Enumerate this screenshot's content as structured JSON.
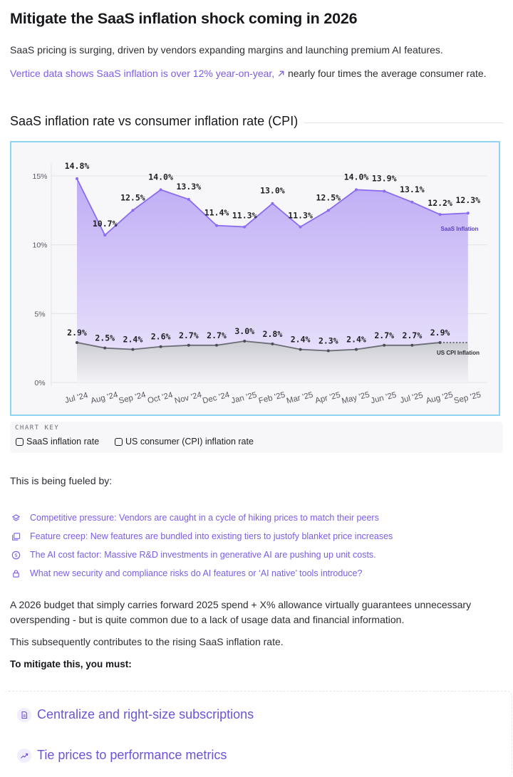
{
  "page": {
    "title": "Mitigate the SaaS inflation shock coming in 2026",
    "intro": "SaaS pricing is surging, driven by vendors expanding margins and launching premium AI features.",
    "intro_link": "Vertice data shows SaaS inflation is over 12% year-on-year,",
    "intro_link_icon": "arrow-up-right-icon",
    "intro_rest": " nearly four times the average consumer rate."
  },
  "chart_section": {
    "heading": "SaaS inflation rate vs consumer inflation rate (CPI)"
  },
  "chart_data": {
    "type": "area",
    "categories": [
      "Jul '24",
      "Aug '24",
      "Sep '24",
      "Oct '24",
      "Nov '24",
      "Dec '24",
      "Jan '25",
      "Feb '25",
      "Mar '25",
      "Apr '25",
      "May '25",
      "Jun '25",
      "Jul '25",
      "Aug '25",
      "Sep '25"
    ],
    "series": [
      {
        "name": "SaaS Inflation",
        "color": "#8b6cf0",
        "values": [
          14.8,
          10.7,
          12.5,
          14.0,
          13.3,
          11.4,
          11.3,
          13.0,
          11.3,
          12.5,
          14.0,
          13.9,
          13.1,
          12.2,
          12.3
        ],
        "labels": [
          "14.8%",
          "10.7%",
          "12.5%",
          "14.0%",
          "13.3%",
          "11.4%",
          "11.3%",
          "13.0%",
          "11.3%",
          "12.5%",
          "14.0%",
          "13.9%",
          "13.1%",
          "12.2%",
          "12.3%"
        ]
      },
      {
        "name": "US CPI Inflation",
        "color": "#6b6e76",
        "values": [
          2.9,
          2.5,
          2.4,
          2.6,
          2.7,
          2.7,
          3.0,
          2.8,
          2.4,
          2.3,
          2.4,
          2.7,
          2.7,
          2.9,
          2.9
        ],
        "labels": [
          "2.9%",
          "2.5%",
          "2.4%",
          "2.6%",
          "2.7%",
          "2.7%",
          "3.0%",
          "2.8%",
          "2.4%",
          "2.3%",
          "2.4%",
          "2.7%",
          "2.7%",
          "2.9%",
          ""
        ]
      }
    ],
    "yticks": [
      "0%",
      "5%",
      "10%",
      "15%"
    ],
    "ytick_values": [
      0,
      5,
      10,
      15
    ],
    "ylim": [
      0,
      16.5
    ],
    "grid": true,
    "cpi_last_segment_dashed": true
  },
  "chart_key": {
    "title": "CHART KEY",
    "items": [
      {
        "label": "SaaS inflation rate"
      },
      {
        "label": "US consumer (CPI) inflation rate"
      }
    ]
  },
  "drivers": {
    "intro": "This is being fueled by:",
    "items": [
      {
        "icon": "layers-icon",
        "text": "Competitive pressure: Vendors are caught in a cycle of hiking prices to match their peers"
      },
      {
        "icon": "gallery-icon",
        "text": "Feature creep: New features are bundled into existing tiers to justofy blanket price increases"
      },
      {
        "icon": "dollar-icon",
        "text": "The AI cost factor: Massive R&D investments in generative AI are pushing up unit costs."
      },
      {
        "icon": "lock-icon",
        "text": "What new security and compliance risks do AI features or ‘AI native’ tools introduce?"
      }
    ]
  },
  "body": {
    "p1": "A 2026 budget that simply carries forward 2025 spend + X% allowance virtually guarantees unnecessary overspending - but is quite common due to a lack of usage data and financial information.",
    "p2": "This subsequently contributes to the rising SaaS inflation rate.",
    "p3": "To mitigate this, you must:"
  },
  "actions": [
    {
      "icon": "document-icon",
      "label": "Centralize and right-size subscriptions"
    },
    {
      "icon": "trend-icon",
      "label": "Tie prices to performance metrics"
    }
  ]
}
